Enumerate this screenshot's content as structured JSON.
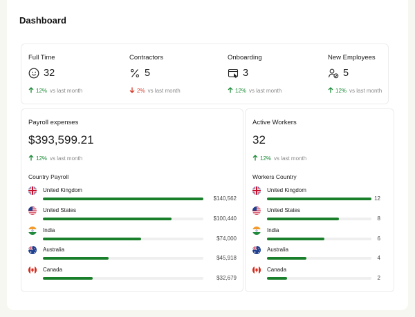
{
  "page": {
    "title": "Dashboard"
  },
  "stats": [
    {
      "label": "Full Time",
      "value": "32",
      "trend": "12%",
      "direction": "up",
      "compare": "vs last month",
      "icon": "smiley-icon"
    },
    {
      "label": "Contractors",
      "value": "5",
      "trend": "2%",
      "direction": "down",
      "compare": "vs last month",
      "icon": "percent-icon"
    },
    {
      "label": "Onboarding",
      "value": "3",
      "trend": "12%",
      "direction": "up",
      "compare": "vs last month",
      "icon": "window-cursor-icon"
    },
    {
      "label": "New Employees",
      "value": "5",
      "trend": "12%",
      "direction": "up",
      "compare": "vs last month",
      "icon": "user-add-icon"
    }
  ],
  "payroll": {
    "title": "Payroll expenses",
    "total": "$393,599.21",
    "trend": "12%",
    "compare": "vs last month",
    "subtitle": "Country Payroll",
    "rows": [
      {
        "country": "United Kingdom",
        "amount": "$140,562",
        "fraction": 1.0,
        "flag": "uk-flag-icon"
      },
      {
        "country": "United States",
        "amount": "$100,440",
        "fraction": 0.8,
        "flag": "us-flag-icon"
      },
      {
        "country": "India",
        "amount": "$74,000",
        "fraction": 0.61,
        "flag": "india-flag-icon"
      },
      {
        "country": "Australia",
        "amount": "$45,918",
        "fraction": 0.41,
        "flag": "australia-flag-icon"
      },
      {
        "country": "Canada",
        "amount": "$32,679",
        "fraction": 0.31,
        "flag": "canada-flag-icon"
      }
    ]
  },
  "workers": {
    "title": "Active Workers",
    "total": "32",
    "trend": "12%",
    "compare": "vs last month",
    "subtitle": "Workers Country",
    "rows": [
      {
        "country": "United Kingdom",
        "amount": "12",
        "fraction": 1.0,
        "flag": "uk-flag-icon"
      },
      {
        "country": "United States",
        "amount": "8",
        "fraction": 0.69,
        "flag": "us-flag-icon"
      },
      {
        "country": "India",
        "amount": "6",
        "fraction": 0.55,
        "flag": "india-flag-icon"
      },
      {
        "country": "Australia",
        "amount": "4",
        "fraction": 0.38,
        "flag": "australia-flag-icon"
      },
      {
        "country": "Canada",
        "amount": "2",
        "fraction": 0.19,
        "flag": "canada-flag-icon"
      }
    ]
  },
  "colors": {
    "accent": "#1a7f2b",
    "up": "#1a8a36",
    "down": "#d63a2a",
    "track": "#efefef"
  }
}
